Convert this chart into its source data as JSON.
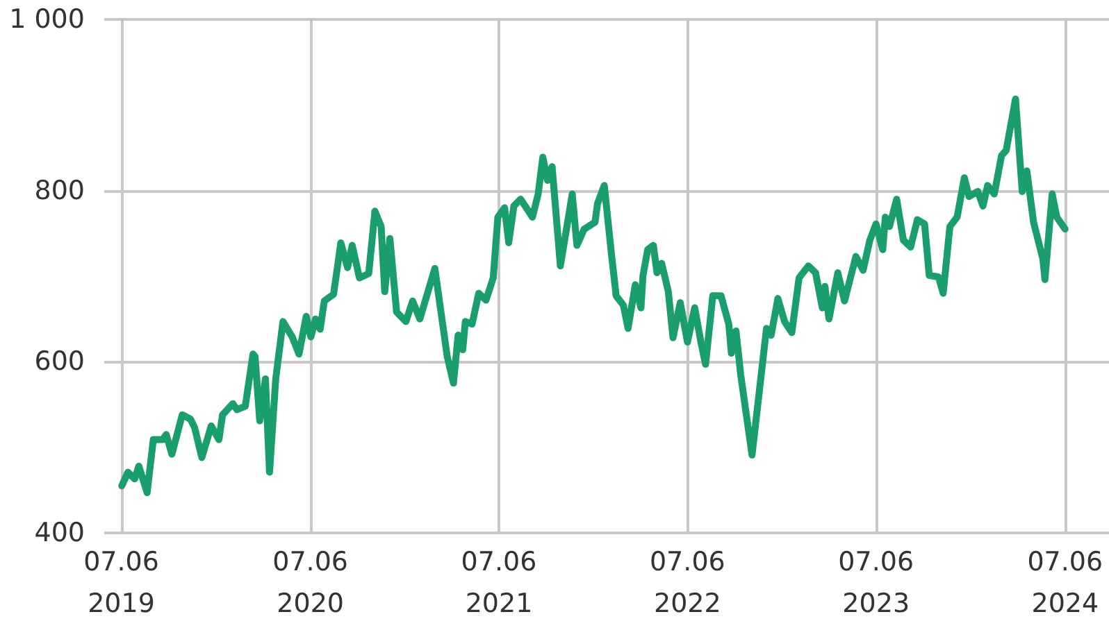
{
  "chart_data": {
    "type": "line",
    "line_style": "solid",
    "marker": "none",
    "grid": true,
    "xlim": [
      "2019-05-05",
      "2024-08-31"
    ],
    "xticks": [
      {
        "value": "2019-06-07",
        "label": "07.06\n2019"
      },
      {
        "value": "2020-06-07",
        "label": "07.06\n2020"
      },
      {
        "value": "2021-06-07",
        "label": "07.06\n2021"
      },
      {
        "value": "2022-06-07",
        "label": "07.06\n2022"
      },
      {
        "value": "2023-06-07",
        "label": "07.06\n2023"
      },
      {
        "value": "2024-06-07",
        "label": "07.06\n2024"
      }
    ],
    "ylim": [
      400,
      1000
    ],
    "yticks": [
      400,
      600,
      800,
      {
        "value": 1000,
        "label": "1 000"
      }
    ],
    "series": [
      {
        "color": "#1a9e6e",
        "x": [
          "2019-06-08",
          "2019-06-20",
          "2019-07-03",
          "2019-07-11",
          "2019-07-27",
          "2019-08-08",
          "2019-08-26",
          "2019-09-02",
          "2019-09-13",
          "2019-10-03",
          "2019-10-19",
          "2019-10-27",
          "2019-11-10",
          "2019-11-28",
          "2019-12-13",
          "2019-12-20",
          "2020-01-09",
          "2020-01-17",
          "2020-02-02",
          "2020-02-17",
          "2020-02-21",
          "2020-03-01",
          "2020-03-12",
          "2020-03-20",
          "2020-04-01",
          "2020-04-15",
          "2020-05-03",
          "2020-05-16",
          "2020-05-30",
          "2020-06-08",
          "2020-06-17",
          "2020-06-26",
          "2020-07-04",
          "2020-07-22",
          "2020-08-05",
          "2020-08-18",
          "2020-08-27",
          "2020-09-10",
          "2020-09-28",
          "2020-10-10",
          "2020-10-22",
          "2020-10-29",
          "2020-11-08",
          "2020-11-21",
          "2020-12-09",
          "2020-12-22",
          "2021-01-05",
          "2021-02-03",
          "2021-02-27",
          "2021-03-11",
          "2021-03-20",
          "2021-03-29",
          "2021-04-03",
          "2021-04-16",
          "2021-04-29",
          "2021-05-13",
          "2021-05-27",
          "2021-06-05",
          "2021-06-18",
          "2021-06-26",
          "2021-07-06",
          "2021-07-19",
          "2021-08-11",
          "2021-08-22",
          "2021-08-31",
          "2021-09-09",
          "2021-09-18",
          "2021-10-04",
          "2021-10-27",
          "2021-11-05",
          "2021-11-19",
          "2021-12-10",
          "2021-12-15",
          "2021-12-28",
          "2022-01-11",
          "2022-01-20",
          "2022-02-03",
          "2022-02-12",
          "2022-02-26",
          "2022-03-09",
          "2022-03-13",
          "2022-03-22",
          "2022-04-02",
          "2022-04-09",
          "2022-04-18",
          "2022-05-01",
          "2022-05-10",
          "2022-05-24",
          "2022-06-07",
          "2022-06-21",
          "2022-07-03",
          "2022-07-12",
          "2022-07-26",
          "2022-08-11",
          "2022-08-26",
          "2022-08-31",
          "2022-09-09",
          "2022-09-18",
          "2022-10-10",
          "2022-11-07",
          "2022-11-16",
          "2022-11-29",
          "2022-12-12",
          "2022-12-26",
          "2023-01-09",
          "2023-01-27",
          "2023-02-10",
          "2023-02-23",
          "2023-02-28",
          "2023-03-08",
          "2023-03-25",
          "2023-04-07",
          "2023-04-29",
          "2023-05-13",
          "2023-05-26",
          "2023-06-07",
          "2023-06-20",
          "2023-06-25",
          "2023-07-03",
          "2023-07-17",
          "2023-07-30",
          "2023-08-13",
          "2023-08-26",
          "2023-09-09",
          "2023-09-18",
          "2023-10-06",
          "2023-10-15",
          "2023-10-28",
          "2023-11-11",
          "2023-11-25",
          "2023-12-04",
          "2023-12-21",
          "2023-12-31",
          "2024-01-09",
          "2024-01-22",
          "2024-02-05",
          "2024-02-14",
          "2024-03-03",
          "2024-03-16",
          "2024-03-25",
          "2024-04-07",
          "2024-04-25",
          "2024-04-29",
          "2024-05-13",
          "2024-05-22",
          "2024-06-07"
        ],
        "values": [
          455,
          471,
          463,
          478,
          447,
          509,
          509,
          515,
          492,
          538,
          533,
          523,
          488,
          525,
          509,
          538,
          551,
          544,
          548,
          609,
          606,
          531,
          580,
          471,
          580,
          647,
          629,
          609,
          653,
          629,
          650,
          638,
          671,
          679,
          739,
          710,
          736,
          698,
          703,
          776,
          758,
          682,
          744,
          658,
          647,
          671,
          650,
          709,
          606,
          575,
          631,
          614,
          647,
          644,
          680,
          672,
          698,
          769,
          780,
          739,
          782,
          790,
          769,
          796,
          839,
          812,
          828,
          712,
          796,
          736,
          755,
          763,
          785,
          806,
          725,
          677,
          666,
          639,
          690,
          663,
          701,
          731,
          736,
          704,
          715,
          682,
          628,
          669,
          623,
          663,
          623,
          597,
          677,
          677,
          644,
          610,
          636,
          585,
          491,
          639,
          631,
          674,
          647,
          634,
          698,
          712,
          704,
          663,
          688,
          650,
          704,
          671,
          723,
          707,
          742,
          761,
          731,
          769,
          758,
          790,
          742,
          734,
          766,
          761,
          701,
          699,
          680,
          758,
          769,
          815,
          793,
          799,
          782,
          806,
          796,
          841,
          847,
          907,
          799,
          823,
          763,
          720,
          696,
          796,
          769,
          755
        ]
      }
    ]
  }
}
